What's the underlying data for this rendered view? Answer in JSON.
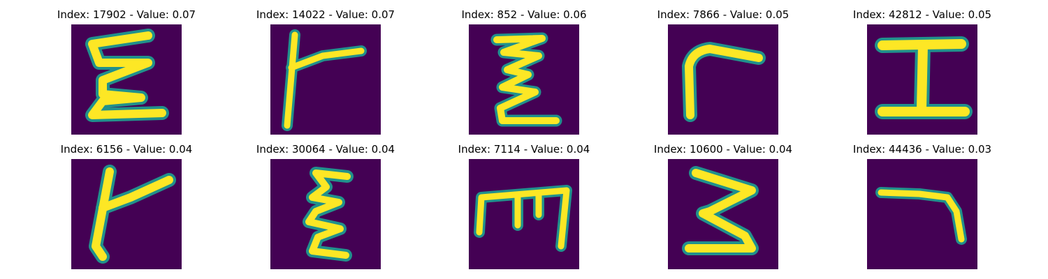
{
  "figure": {
    "background": "#ffffff",
    "colors": {
      "low": "#440154",
      "mid": "#21918c",
      "high": "#fde725"
    },
    "panels": [
      {
        "title": "Index: 17902 - Value: 0.07",
        "glyph": "epsilon-curly"
      },
      {
        "title": "Index: 14022 - Value: 0.07",
        "glyph": "vertical-with-right-arm"
      },
      {
        "title": "Index: 852 - Value: 0.06",
        "glyph": "zigzag-z"
      },
      {
        "title": "Index: 7866 - Value: 0.05",
        "glyph": "corner-gamma"
      },
      {
        "title": "Index: 42812 - Value: 0.05",
        "glyph": "capital-i"
      },
      {
        "title": "Index: 6156 - Value: 0.04",
        "glyph": "vertical-with-diagonal-arm"
      },
      {
        "title": "Index: 30064 - Value: 0.04",
        "glyph": "epsilon-narrow"
      },
      {
        "title": "Index: 7114 - Value: 0.04",
        "glyph": "m-shape"
      },
      {
        "title": "Index: 10600 - Value: 0.04",
        "glyph": "digit-three"
      },
      {
        "title": "Index: 44436 - Value: 0.03",
        "glyph": "reverse-corner"
      }
    ]
  }
}
